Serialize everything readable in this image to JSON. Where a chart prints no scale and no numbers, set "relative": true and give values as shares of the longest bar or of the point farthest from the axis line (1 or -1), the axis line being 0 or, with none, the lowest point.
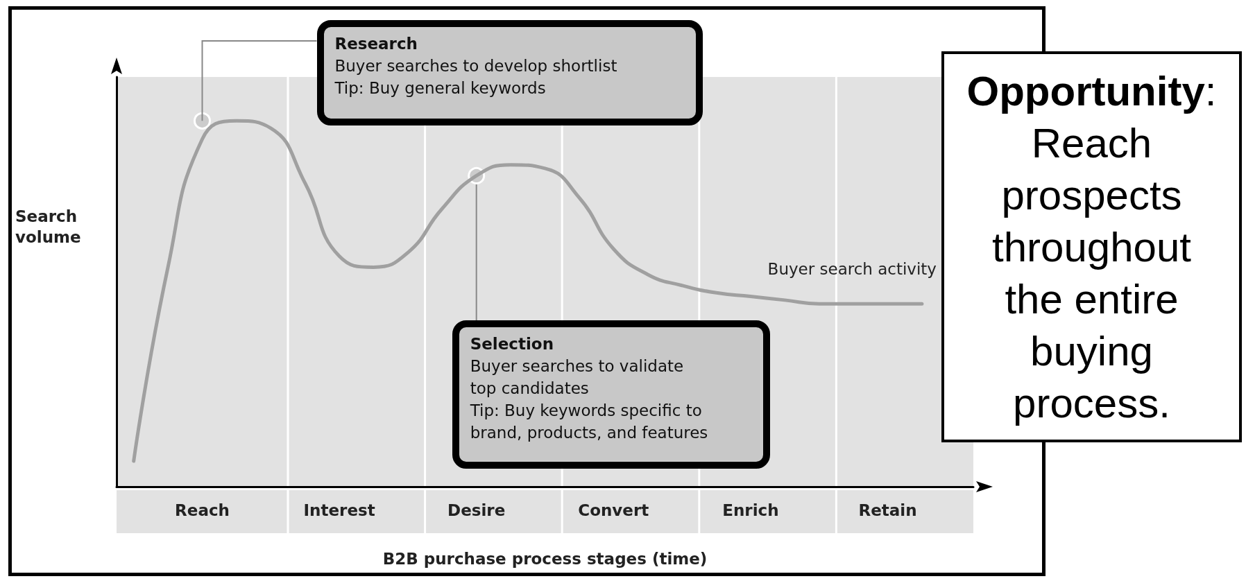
{
  "chart_data": {
    "type": "line",
    "relative": true,
    "xlabel": "B2B purchase process stages (time)",
    "ylabel": "Search volume",
    "categories": [
      null,
      null,
      "Reach",
      null,
      null,
      null,
      "Interest",
      null,
      null,
      null,
      "Desire",
      null,
      null,
      null,
      "Convert",
      null,
      null,
      null,
      "Enrich",
      null,
      null,
      null,
      "Retain",
      null,
      null
    ],
    "grid": "x",
    "marker": "none",
    "line_style": "solid",
    "legend": false,
    "series": [
      {
        "name": "Buyer search activity",
        "color": "#a0a0a0",
        "values": [
          0.07,
          0.6,
          0.95,
          1.0,
          0.98,
          0.83,
          0.63,
          0.6,
          0.64,
          0.76,
          0.85,
          0.88,
          0.87,
          0.79,
          0.65,
          0.58,
          0.55,
          0.53,
          0.52,
          0.51,
          0.5,
          0.5,
          0.5,
          0.5,
          null
        ]
      }
    ],
    "annotations": [
      {
        "text": "Research\nBuyer searches to develop shortlist\nTip: Buy general keywords",
        "x": "Reach",
        "y": 1.0
      },
      {
        "text": "Selection\nBuyer searches to validate\ntop candidates\nTip: Buy keywords specific to\nbrand, products, and features",
        "x": "Desire",
        "y": 0.85
      },
      "Opportunity: Reach prospects throughout the entire buying process."
    ]
  }
}
